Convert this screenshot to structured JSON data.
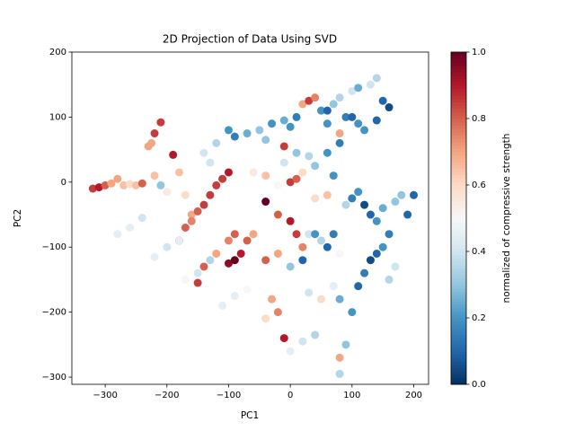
{
  "chart_data": {
    "type": "scatter",
    "title": "2D Projection of Data Using SVD",
    "xlabel": "PC1",
    "ylabel": "PC2",
    "colormap": "RdBu_r",
    "x": [
      -320,
      -310,
      -300,
      -290,
      -280,
      -270,
      -260,
      -250,
      -240,
      -230,
      -225,
      -220,
      -210,
      -220,
      -210,
      -200,
      -190,
      -180,
      -170,
      -160,
      -150,
      -140,
      -130,
      -120,
      -110,
      -100,
      -180,
      -170,
      -160,
      -150,
      -140,
      -120,
      -100,
      -90,
      -100,
      -90,
      -80,
      -70,
      -60,
      -280,
      -260,
      -240,
      -220,
      -200,
      -180,
      -170,
      -150,
      -130,
      -110,
      -90,
      -70,
      -140,
      -130,
      -120,
      -100,
      -90,
      -70,
      -50,
      -40,
      -30,
      -10,
      0,
      10,
      20,
      30,
      40,
      50,
      60,
      70,
      80,
      100,
      110,
      130,
      140,
      150,
      160,
      60,
      80,
      90,
      100,
      110,
      120,
      140,
      -10,
      10,
      30,
      60,
      80,
      0,
      10,
      20,
      40,
      60,
      70,
      90,
      100,
      110,
      120,
      130,
      140,
      150,
      160,
      170,
      180,
      190,
      200,
      -40,
      -20,
      0,
      10,
      20,
      30,
      40,
      50,
      60,
      70,
      80,
      -40,
      -20,
      0,
      20,
      30,
      50,
      70,
      -30,
      -20,
      -10,
      -40,
      0,
      20,
      40,
      80,
      100,
      110,
      120,
      130,
      140,
      150,
      160,
      170,
      80,
      80,
      90,
      -60,
      -40,
      -20,
      -10,
      40
    ],
    "y": [
      -10,
      -8,
      -5,
      -2,
      5,
      -5,
      -3,
      -5,
      -2,
      55,
      60,
      75,
      92,
      10,
      -5,
      -15,
      42,
      15,
      -20,
      -50,
      -45,
      -35,
      -20,
      -5,
      5,
      15,
      -90,
      -70,
      -60,
      -155,
      -130,
      -110,
      -90,
      -80,
      -125,
      -120,
      -110,
      -90,
      -80,
      -80,
      -70,
      -55,
      -115,
      -100,
      -90,
      -150,
      -140,
      -120,
      -190,
      -175,
      -165,
      45,
      30,
      60,
      80,
      70,
      75,
      80,
      65,
      90,
      95,
      85,
      100,
      120,
      125,
      130,
      110,
      110,
      120,
      130,
      140,
      145,
      150,
      160,
      125,
      115,
      90,
      75,
      100,
      100,
      90,
      80,
      95,
      55,
      45,
      40,
      45,
      60,
      0,
      5,
      15,
      -25,
      -20,
      10,
      -35,
      -25,
      -15,
      -35,
      -50,
      -60,
      -40,
      -80,
      -30,
      -20,
      -50,
      -20,
      -30,
      -50,
      -60,
      -80,
      -100,
      -80,
      -80,
      -90,
      -100,
      -80,
      -110,
      -120,
      -110,
      -130,
      -120,
      -170,
      -180,
      -160,
      -180,
      -200,
      -240,
      -210,
      -260,
      -245,
      -235,
      -180,
      -200,
      -160,
      -140,
      -120,
      -110,
      -100,
      -150,
      -130,
      -270,
      -295,
      -250,
      15,
      10,
      -5,
      30,
      25
    ],
    "c": [
      0.85,
      0.9,
      0.8,
      0.7,
      0.7,
      0.65,
      0.6,
      0.65,
      0.8,
      0.7,
      0.7,
      0.85,
      0.85,
      0.65,
      0.3,
      0.55,
      0.9,
      0.65,
      0.6,
      0.7,
      0.8,
      0.85,
      0.85,
      0.85,
      0.85,
      0.9,
      0.9,
      0.8,
      0.75,
      0.85,
      0.8,
      0.7,
      0.75,
      0.8,
      0.95,
      1.0,
      0.9,
      0.8,
      0.7,
      0.45,
      0.45,
      0.4,
      0.45,
      0.4,
      0.45,
      0.5,
      0.4,
      0.35,
      0.45,
      0.45,
      0.5,
      0.4,
      0.4,
      0.35,
      0.2,
      0.15,
      0.25,
      0.3,
      0.3,
      0.2,
      0.25,
      0.2,
      0.15,
      0.7,
      0.85,
      0.75,
      0.2,
      0.1,
      0.3,
      0.35,
      0.4,
      0.25,
      0.4,
      0.35,
      0.1,
      0.05,
      0.2,
      0.7,
      0.15,
      0.1,
      0.2,
      0.2,
      0.1,
      0.85,
      0.3,
      0.35,
      0.2,
      0.15,
      0.85,
      0.8,
      0.6,
      0.6,
      0.65,
      0.2,
      0.35,
      0.15,
      0.2,
      0.05,
      0.1,
      0.2,
      0.25,
      0.15,
      0.3,
      0.3,
      0.1,
      0.1,
      1.0,
      0.8,
      0.9,
      0.85,
      0.75,
      0.4,
      0.2,
      0.35,
      0.1,
      0.15,
      0.5,
      0.8,
      0.7,
      0.3,
      0.1,
      0.4,
      0.6,
      0.45,
      0.7,
      0.75,
      0.9,
      0.6,
      0.45,
      0.4,
      0.35,
      0.25,
      0.2,
      0.1,
      0.15,
      0.05,
      0.1,
      0.2,
      0.35,
      0.4,
      0.7,
      0.35,
      0.3,
      0.55,
      0.65,
      0.5,
      0.4,
      0.3
    ],
    "xlim": [
      -354,
      224
    ],
    "ylim": [
      -311,
      200
    ],
    "xticks": [
      {
        "value": -300,
        "label": "−300"
      },
      {
        "value": -200,
        "label": "−200"
      },
      {
        "value": -100,
        "label": "−100"
      },
      0,
      100,
      200
    ],
    "yticks": [
      {
        "value": -300,
        "label": "−300"
      },
      {
        "value": -200,
        "label": "−200"
      },
      {
        "value": -100,
        "label": "−100"
      },
      0,
      100,
      200
    ],
    "colorbar": {
      "label": "normalized of compressive strength",
      "lim": [
        0,
        1
      ],
      "ticks": [
        {
          "value": 0,
          "label": "0.0"
        },
        0.2,
        0.4,
        0.6,
        0.8,
        {
          "value": 1,
          "label": "1.0"
        }
      ]
    }
  }
}
